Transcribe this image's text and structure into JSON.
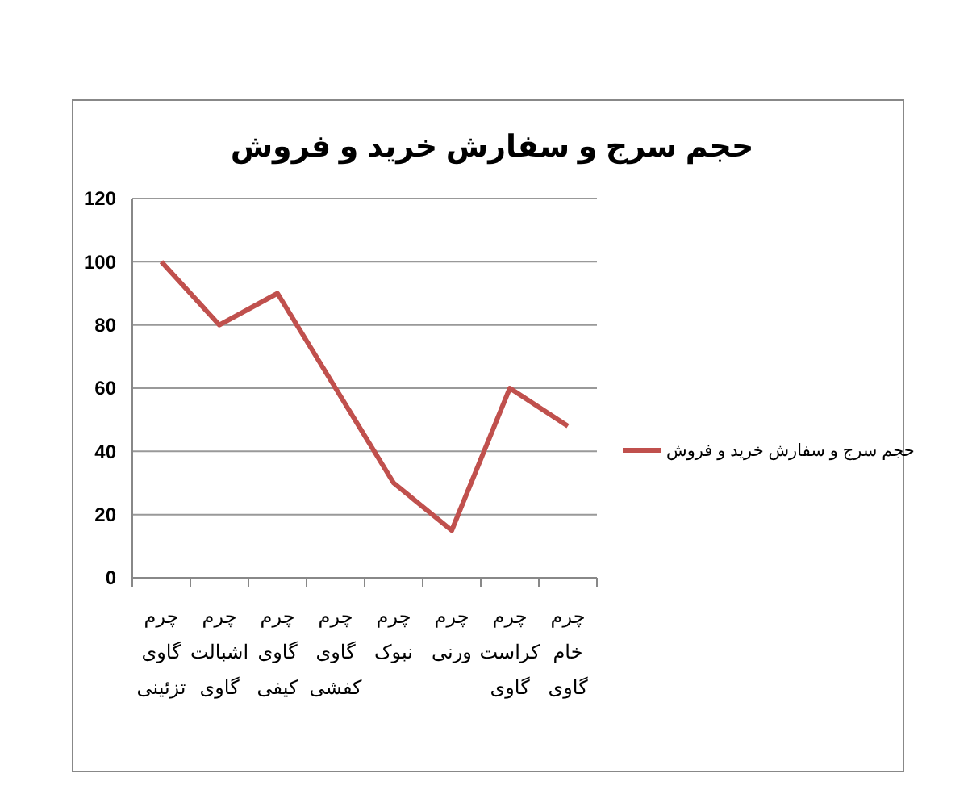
{
  "chart_data": {
    "type": "line",
    "title": "حجم سرج و سفارش خرید و فروش",
    "categories": [
      "چرم گاوی تزئینی",
      "چرم اشبالت گاوی",
      "چرم گاوی کیفی",
      "چرم گاوی کفشی",
      "چرم نبوک",
      "چرم ورنی",
      "چرم کراست گاوی",
      "چرم خام گاوی"
    ],
    "series": [
      {
        "name": "حجم سرج و سفارش خرید و فروش",
        "color": "#c0504d",
        "values": [
          100,
          80,
          90,
          60,
          30,
          15,
          60,
          48
        ]
      }
    ],
    "ylim": [
      0,
      120
    ],
    "yticks": [
      0,
      20,
      40,
      60,
      80,
      100,
      120
    ],
    "grid": "y",
    "legend": "right",
    "marker": "none"
  }
}
